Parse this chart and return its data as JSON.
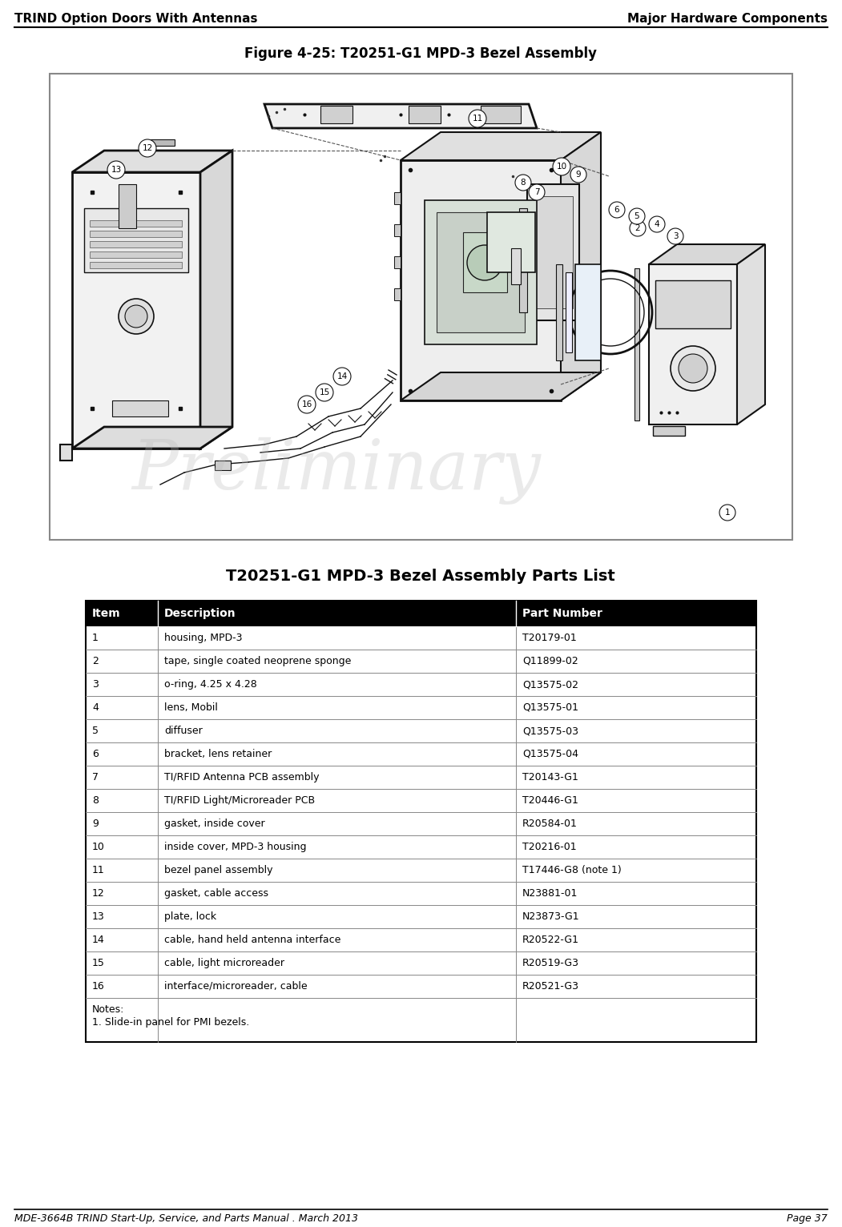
{
  "header_left": "TRIND Option Doors With Antennas",
  "header_right": "Major Hardware Components",
  "figure_title": "Figure 4-25: T20251-G1 MPD-3 Bezel Assembly",
  "table_title": "T20251-G1 MPD-3 Bezel Assembly Parts List",
  "footer_left": "MDE-3664B TRIND Start-Up, Service, and Parts Manual . March 2013",
  "footer_right": "Page 37",
  "table_headers": [
    "Item",
    "Description",
    "Part Number"
  ],
  "table_rows": [
    [
      "1",
      "housing, MPD-3",
      "T20179-01"
    ],
    [
      "2",
      "tape, single coated neoprene sponge",
      "Q11899-02"
    ],
    [
      "3",
      "o-ring, 4.25 x 4.28",
      "Q13575-02"
    ],
    [
      "4",
      "lens, Mobil",
      "Q13575-01"
    ],
    [
      "5",
      "diffuser",
      "Q13575-03"
    ],
    [
      "6",
      "bracket, lens retainer",
      "Q13575-04"
    ],
    [
      "7",
      "TI/RFID Antenna PCB assembly",
      "T20143-G1"
    ],
    [
      "8",
      "TI/RFID Light/Microreader PCB",
      "T20446-G1"
    ],
    [
      "9",
      "gasket, inside cover",
      "R20584-01"
    ],
    [
      "10",
      "inside cover, MPD-3 housing",
      "T20216-01"
    ],
    [
      "11",
      "bezel panel assembly",
      "T17446-G8 (note 1)"
    ],
    [
      "12",
      "gasket, cable access",
      "N23881-01"
    ],
    [
      "13",
      "plate, lock",
      "N23873-G1"
    ],
    [
      "14",
      "cable, hand held antenna interface",
      "R20522-G1"
    ],
    [
      "15",
      "cable, light microreader",
      "R20519-G3"
    ],
    [
      "16",
      "interface/microreader, cable",
      "R20521-G3"
    ]
  ],
  "notes": [
    "Notes:",
    "1. Slide-in panel for PMI bezels."
  ],
  "header_bg": "#000000",
  "header_text_color": "#ffffff",
  "border_color": "#000000",
  "text_color": "#000000",
  "preliminary_watermark": "Preliminary",
  "watermark_color": "#bbbbbb",
  "watermark_alpha": 0.3,
  "diagram_bg": "#ffffff",
  "diagram_border": "#888888"
}
